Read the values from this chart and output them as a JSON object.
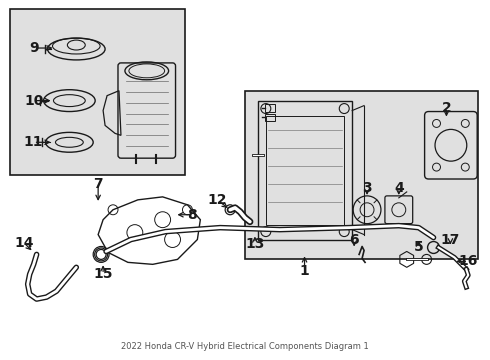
{
  "title": "2022 Honda CR-V Hybrid Electrical Components Diagram 1",
  "bg_color": "#ffffff",
  "line_color": "#1a1a1a",
  "box_bg": "#e0e0e0",
  "figsize": [
    4.9,
    3.6
  ],
  "dpi": 100
}
